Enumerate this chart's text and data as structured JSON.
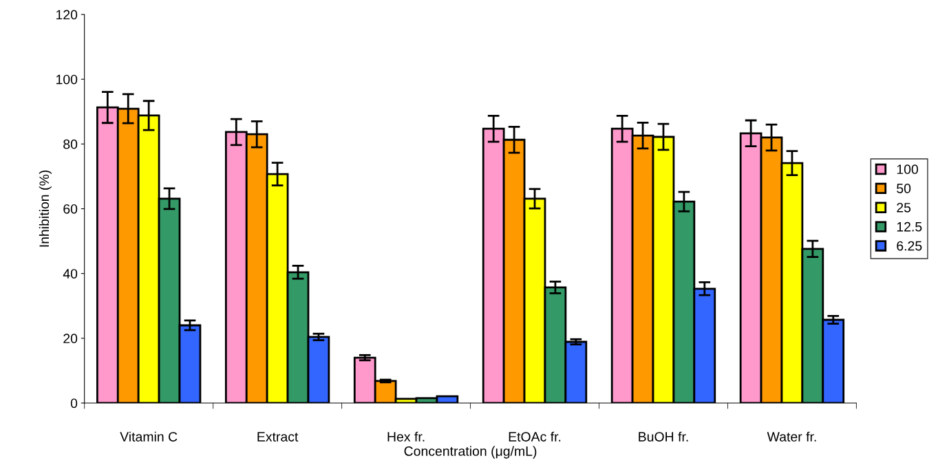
{
  "chart_data": {
    "type": "bar",
    "xlabel": "Concentration (μg/mL)",
    "ylabel": "Inhibition (%)",
    "categories": [
      "Vitamin C",
      "Extract",
      "Hex fr.",
      "EtOAc fr.",
      "BuOH fr.",
      "Water fr."
    ],
    "series": [
      {
        "name": "100",
        "color": "#ff99cc",
        "values": [
          91.3,
          83.7,
          14.0,
          84.7,
          84.7,
          83.3
        ],
        "errors": [
          4.8,
          4,
          0.8,
          4,
          4,
          4
        ]
      },
      {
        "name": "50",
        "color": "#ff9900",
        "values": [
          90.9,
          83.0,
          6.8,
          81.3,
          82.6,
          82.0
        ],
        "errors": [
          4.5,
          4,
          0.4,
          4,
          4,
          4
        ]
      },
      {
        "name": "25",
        "color": "#ffff00",
        "values": [
          88.8,
          70.7,
          1.3,
          63.1,
          82.2,
          74.1
        ],
        "errors": [
          4.5,
          3.5,
          null,
          3,
          4,
          3.7
        ]
      },
      {
        "name": "12.5",
        "color": "#339966",
        "values": [
          63.1,
          40.4,
          1.5,
          35.7,
          62.2,
          47.6
        ],
        "errors": [
          3.2,
          2,
          null,
          1.8,
          3,
          2.5
        ]
      },
      {
        "name": "6.25",
        "color": "#3366ff",
        "values": [
          24.0,
          20.4,
          2.1,
          18.9,
          35.3,
          25.7
        ],
        "errors": [
          1.5,
          1,
          null,
          0.8,
          2,
          1.2
        ]
      }
    ],
    "ylim": [
      0,
      120
    ],
    "yticks": [
      0,
      20,
      40,
      60,
      80,
      100,
      120
    ],
    "grid": false,
    "legend": "right"
  }
}
